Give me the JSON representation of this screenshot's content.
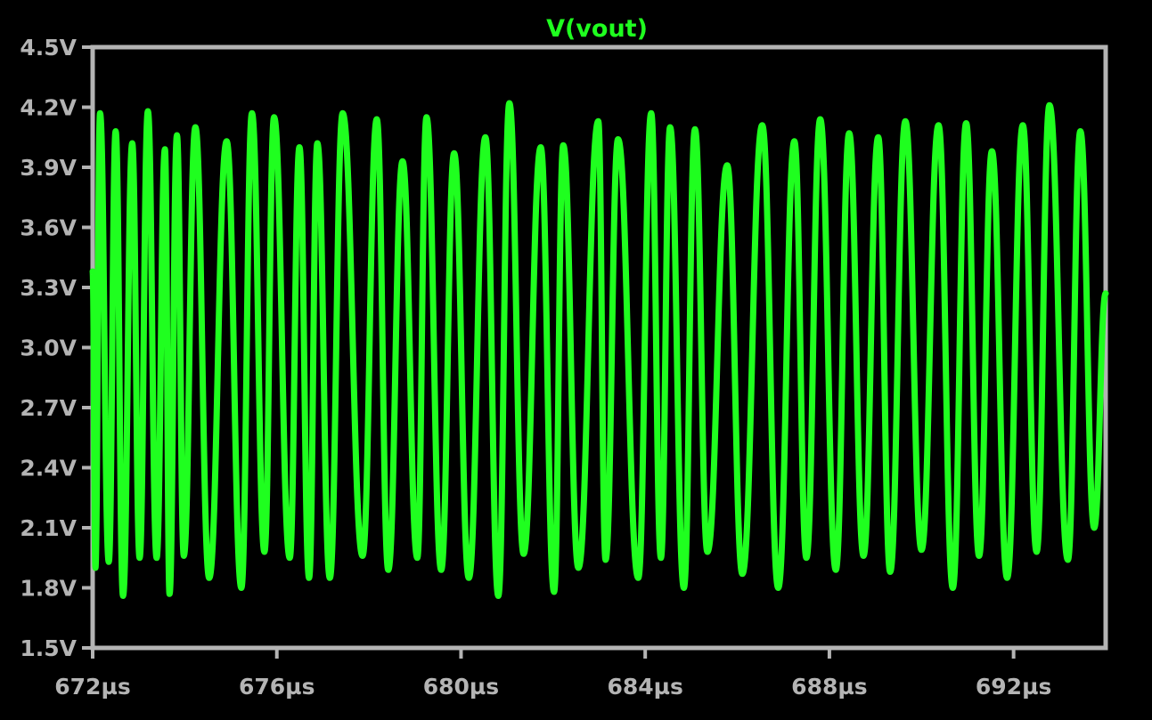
{
  "chart_data": {
    "type": "line",
    "title": "V(vout)",
    "x_unit": "µs",
    "y_unit": "V",
    "xlim": [
      672,
      694
    ],
    "ylim": [
      1.5,
      4.5
    ],
    "x_ticks": [
      672,
      676,
      680,
      684,
      688,
      692
    ],
    "x_tick_labels": [
      "672µs",
      "676µs",
      "680µs",
      "684µs",
      "688µs",
      "692µs"
    ],
    "y_ticks": [
      1.5,
      1.8,
      2.1,
      2.4,
      2.7,
      3.0,
      3.3,
      3.6,
      3.9,
      4.2,
      4.5
    ],
    "y_tick_labels": [
      "1.5V",
      "1.8V",
      "2.1V",
      "2.4V",
      "2.7V",
      "3.0V",
      "3.3V",
      "3.6V",
      "3.9V",
      "4.2V",
      "4.5V"
    ],
    "grid": false,
    "colors": {
      "background": "#000000",
      "frame": "#b4b4b4",
      "trace": "#1fff1f"
    },
    "series": [
      {
        "name": "V(vout)",
        "x": [
          672.0,
          672.06,
          672.16,
          672.35,
          672.5,
          672.66,
          672.86,
          673.02,
          673.2,
          673.39,
          673.57,
          673.67,
          673.83,
          673.98,
          674.23,
          674.53,
          674.91,
          675.23,
          675.46,
          675.73,
          675.94,
          676.28,
          676.49,
          676.7,
          676.88,
          677.15,
          677.43,
          677.86,
          678.17,
          678.42,
          678.73,
          679.05,
          679.25,
          679.57,
          679.85,
          680.17,
          680.53,
          680.81,
          681.05,
          681.36,
          681.73,
          682.02,
          682.22,
          682.55,
          682.98,
          683.14,
          683.41,
          683.85,
          684.13,
          684.34,
          684.54,
          684.84,
          685.08,
          685.35,
          685.78,
          686.11,
          686.54,
          686.89,
          687.24,
          687.5,
          687.8,
          688.14,
          688.43,
          688.74,
          689.06,
          689.32,
          689.65,
          690.0,
          690.37,
          690.68,
          690.97,
          691.25,
          691.53,
          691.86,
          692.2,
          692.5,
          692.78,
          693.18,
          693.45,
          693.75,
          694.0
        ],
        "y": [
          3.38,
          1.9,
          4.17,
          1.93,
          4.08,
          1.76,
          4.02,
          1.95,
          4.18,
          1.95,
          3.99,
          1.77,
          4.06,
          1.96,
          4.1,
          1.85,
          4.03,
          1.8,
          4.17,
          1.98,
          4.15,
          1.95,
          4.0,
          1.85,
          4.02,
          1.85,
          4.17,
          1.96,
          4.14,
          1.89,
          3.93,
          1.95,
          4.15,
          1.89,
          3.97,
          1.85,
          4.05,
          1.76,
          4.22,
          1.97,
          4.0,
          1.78,
          4.01,
          1.9,
          4.13,
          1.94,
          4.04,
          1.85,
          4.17,
          1.95,
          4.1,
          1.8,
          4.09,
          1.98,
          3.91,
          1.87,
          4.11,
          1.8,
          4.03,
          1.95,
          4.14,
          1.89,
          4.07,
          1.96,
          4.05,
          1.88,
          4.13,
          1.99,
          4.11,
          1.8,
          4.12,
          1.96,
          3.98,
          1.85,
          4.11,
          1.98,
          4.21,
          1.94,
          4.08,
          2.1,
          3.27
        ]
      }
    ]
  }
}
